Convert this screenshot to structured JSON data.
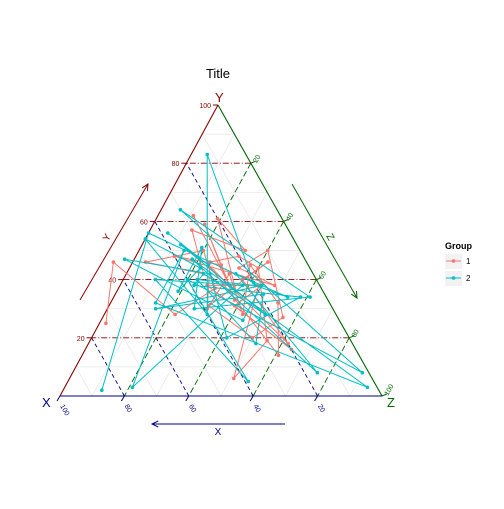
{
  "chart_data": {
    "type": "ternary-scatter-path",
    "title": "Title",
    "axes": {
      "X": {
        "label": "X",
        "arrow_label": "X",
        "ticks": [
          "100",
          "80",
          "60",
          "40",
          "20"
        ],
        "color": "#000080"
      },
      "Y": {
        "label": "Y",
        "arrow_label": "Y",
        "ticks": [
          "100",
          "80",
          "60",
          "40",
          "20"
        ],
        "color": "#8b0000"
      },
      "Z": {
        "label": "Z",
        "arrow_label": "Z",
        "ticks": [
          "20",
          "40",
          "60",
          "80",
          "100"
        ],
        "color": "#006400"
      }
    },
    "range": [
      0,
      100
    ],
    "grid": true,
    "legend": {
      "title": "Group",
      "position": "right",
      "entries": [
        {
          "name": "1",
          "color": "#f8766d"
        },
        {
          "name": "2",
          "color": "#00bfc4"
        }
      ]
    },
    "series": [
      {
        "name": "1",
        "color": "#f8766d",
        "points": [
          {
            "x": 27,
            "y": 62,
            "z": 11
          },
          {
            "x": 28,
            "y": 38,
            "z": 34
          },
          {
            "x": 25,
            "y": 59,
            "z": 16
          },
          {
            "x": 29,
            "y": 33,
            "z": 38
          },
          {
            "x": 27,
            "y": 45,
            "z": 28
          },
          {
            "x": 40,
            "y": 48,
            "z": 12
          },
          {
            "x": 14,
            "y": 38,
            "z": 48
          },
          {
            "x": 22,
            "y": 44,
            "z": 34
          },
          {
            "x": 10,
            "y": 50,
            "z": 40
          },
          {
            "x": 17,
            "y": 27,
            "z": 56
          },
          {
            "x": 30,
            "y": 20,
            "z": 50
          },
          {
            "x": 38,
            "y": 31,
            "z": 31
          },
          {
            "x": 12,
            "y": 46,
            "z": 42
          },
          {
            "x": 23,
            "y": 40,
            "z": 37
          },
          {
            "x": 20,
            "y": 18,
            "z": 62
          },
          {
            "x": 31,
            "y": 45,
            "z": 24
          },
          {
            "x": 25,
            "y": 14,
            "z": 61
          },
          {
            "x": 16,
            "y": 32,
            "z": 52
          },
          {
            "x": 18,
            "y": 45,
            "z": 37
          },
          {
            "x": 29,
            "y": 28,
            "z": 43
          },
          {
            "x": 26,
            "y": 42,
            "z": 32
          },
          {
            "x": 39,
            "y": 30,
            "z": 31
          },
          {
            "x": 30,
            "y": 46,
            "z": 24
          },
          {
            "x": 20,
            "y": 48,
            "z": 32
          },
          {
            "x": 16,
            "y": 44,
            "z": 40
          },
          {
            "x": 26,
            "y": 19,
            "z": 55
          },
          {
            "x": 43,
            "y": 6,
            "z": 51
          },
          {
            "x": 19,
            "y": 38,
            "z": 43
          },
          {
            "x": 35,
            "y": 38,
            "z": 27
          },
          {
            "x": 20,
            "y": 16,
            "z": 64
          },
          {
            "x": 30,
            "y": 31,
            "z": 39
          },
          {
            "x": 18,
            "y": 38,
            "z": 44
          },
          {
            "x": 27,
            "y": 36,
            "z": 37
          },
          {
            "x": 20,
            "y": 61,
            "z": 19
          },
          {
            "x": 17,
            "y": 50,
            "z": 33
          },
          {
            "x": 30,
            "y": 57,
            "z": 13
          },
          {
            "x": 34,
            "y": 42,
            "z": 24
          },
          {
            "x": 50,
            "y": 46,
            "z": 4
          },
          {
            "x": 30,
            "y": 50,
            "z": 20
          },
          {
            "x": 33,
            "y": 37,
            "z": 30
          },
          {
            "x": 50,
            "y": 28,
            "z": 22
          },
          {
            "x": 60,
            "y": 46,
            "z": -6
          },
          {
            "x": 73,
            "y": 25,
            "z": 2
          }
        ]
      },
      {
        "name": "2",
        "color": "#00bfc4",
        "points": [
          {
            "x": 38,
            "y": 56,
            "z": 6
          },
          {
            "x": 31,
            "y": 45,
            "z": 24
          },
          {
            "x": 36,
            "y": 52,
            "z": 12
          },
          {
            "x": 22,
            "y": 28,
            "z": 50
          },
          {
            "x": 34,
            "y": 42,
            "z": 24
          },
          {
            "x": 39,
            "y": 38,
            "z": 23
          },
          {
            "x": 8,
            "y": 34,
            "z": 58
          },
          {
            "x": 38,
            "y": 20,
            "z": 42
          },
          {
            "x": 32,
            "y": 42,
            "z": 26
          },
          {
            "x": 56,
            "y": 47,
            "z": -3
          },
          {
            "x": 30,
            "y": 26,
            "z": 44
          },
          {
            "x": 18,
            "y": 38,
            "z": 44
          },
          {
            "x": 55,
            "y": 30,
            "z": 15
          },
          {
            "x": 19,
            "y": 35,
            "z": 46
          },
          {
            "x": 30,
            "y": 18,
            "z": 52
          },
          {
            "x": 37,
            "y": 40,
            "z": 23
          },
          {
            "x": 20,
            "y": 38,
            "z": 42
          },
          {
            "x": 12,
            "y": 34,
            "z": 54
          },
          {
            "x": 24,
            "y": 42,
            "z": 34
          },
          {
            "x": 16,
            "y": 8,
            "z": 76
          },
          {
            "x": 35,
            "y": 47,
            "z": 18
          },
          {
            "x": 3,
            "y": 3,
            "z": 94
          },
          {
            "x": 54,
            "y": 32,
            "z": 14
          },
          {
            "x": 36,
            "y": 50,
            "z": 14
          },
          {
            "x": 76,
            "y": 3,
            "z": 21
          },
          {
            "x": 24,
            "y": 38,
            "z": 38
          },
          {
            "x": 50,
            "y": 40,
            "z": 10
          },
          {
            "x": 39,
            "y": 5,
            "z": 56
          },
          {
            "x": 40,
            "y": 40,
            "z": 20
          },
          {
            "x": 2,
            "y": 8,
            "z": 90
          },
          {
            "x": 30,
            "y": 64,
            "z": 6
          },
          {
            "x": 5,
            "y": 34,
            "z": 61
          },
          {
            "x": 43,
            "y": 30,
            "z": 27
          },
          {
            "x": 30,
            "y": 51,
            "z": 19
          },
          {
            "x": 45,
            "y": 36,
            "z": 19
          },
          {
            "x": 34,
            "y": 44,
            "z": 22
          },
          {
            "x": 46,
            "y": 54,
            "z": 0
          },
          {
            "x": 40,
            "y": 28,
            "z": 32
          },
          {
            "x": 12,
            "y": 83,
            "z": 5
          },
          {
            "x": 20,
            "y": 39,
            "z": 41
          },
          {
            "x": 44,
            "y": 56,
            "z": 0
          },
          {
            "x": 86,
            "y": 2,
            "z": 12
          }
        ]
      }
    ]
  }
}
